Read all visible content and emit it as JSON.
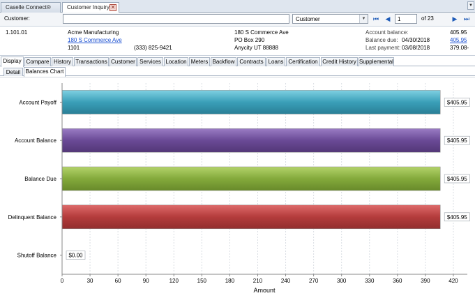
{
  "doc_tabs": [
    {
      "label": "Caselle Connect®",
      "active": false
    },
    {
      "label": "Customer Inquiry",
      "active": true
    }
  ],
  "customer_row": {
    "label": "Customer:",
    "input_value": "",
    "search_type": "Customer",
    "page": "1",
    "of_pages": "of 23"
  },
  "account": {
    "number": "1.101.01",
    "name": "Acme Manufacturing",
    "service_address_link": "180 S Commerce Ave",
    "code": "1101",
    "phone": "(333) 825-9421",
    "mail_line1": "180 S Commerce Ave",
    "mail_line2": "PO Box 290",
    "mail_line3": "Anycity  UT  88888",
    "balance_label": "Account balance:",
    "balance_value": "405.95",
    "due_label": "Balance due:",
    "due_date": "04/30/2018",
    "due_value_link": "405.95",
    "last_payment_label": "Last payment:",
    "last_payment_date": "03/08/2018",
    "last_payment_value": "379.08-"
  },
  "main_tabs": [
    "Display",
    "Compare",
    "History",
    "Transactions",
    "Customer",
    "Services",
    "Location",
    "Meters",
    "Backflow",
    "Contracts",
    "Loans",
    "Certification",
    "Credit History",
    "Supplemental"
  ],
  "active_main_tab": "Display",
  "sub_tabs": [
    "Detail",
    "Balances Chart"
  ],
  "active_sub_tab": "Balances Chart",
  "colors": {
    "payoff": "#3a9fb8",
    "balance": "#6a4a96",
    "due": "#84aa3c",
    "delinquent": "#b43c3c",
    "shutoff": "#888888"
  },
  "chart_data": {
    "type": "bar",
    "orientation": "horizontal",
    "categories": [
      "Account Payoff",
      "Account Balance",
      "Balance Due",
      "Delinquent Balance",
      "Shutoff Balance"
    ],
    "values": [
      405.95,
      405.95,
      405.95,
      405.95,
      0.0
    ],
    "data_labels": [
      "$405.95",
      "$405.95",
      "$405.95",
      "$405.95",
      "$0.00"
    ],
    "xlabel": "Amount",
    "xlim": [
      0,
      435
    ],
    "x_ticks": [
      0,
      30,
      60,
      90,
      120,
      150,
      180,
      210,
      240,
      270,
      300,
      330,
      360,
      390,
      420
    ],
    "grid": true
  }
}
